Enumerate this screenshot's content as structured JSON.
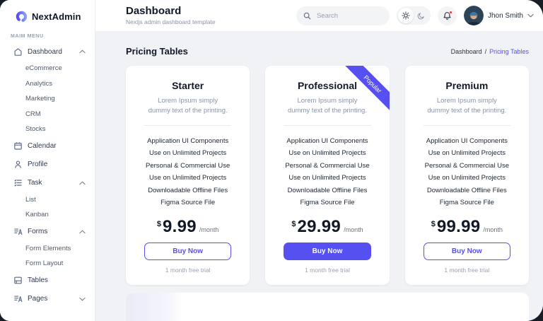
{
  "sidebar": {
    "logo_text": "NextAdmin",
    "section_label": "MAIM MENU",
    "items": [
      {
        "label": "Dashboard",
        "icon": "dashboard-icon",
        "state": "expanded",
        "children": [
          "eCommerce",
          "Analytics",
          "Marketing",
          "CRM",
          "Stocks"
        ]
      },
      {
        "label": "Calendar",
        "icon": "calendar-icon"
      },
      {
        "label": "Profile",
        "icon": "profile-icon"
      },
      {
        "label": "Task",
        "icon": "task-icon",
        "state": "expanded",
        "children": [
          "List",
          "Kanban"
        ]
      },
      {
        "label": "Forms",
        "icon": "forms-icon",
        "state": "expanded",
        "children": [
          "Form Elements",
          "Form Layout"
        ]
      },
      {
        "label": "Tables",
        "icon": "tables-icon"
      },
      {
        "label": "Pages",
        "icon": "pages-icon",
        "state": "collapsed",
        "children": []
      }
    ]
  },
  "header": {
    "title": "Dashboard",
    "subtitle": "Nextjs admin dashboard template",
    "search_placeholder": "Search",
    "user_name": "Jhon Smith"
  },
  "page": {
    "title": "Pricing Tables",
    "breadcrumb": {
      "parent": "Dashboard",
      "separator": "/",
      "current": "Pricing Tables"
    }
  },
  "pricing": {
    "description": "Lorem Ipsum simply dummy text of the printing.",
    "features": [
      "Application UI Components",
      "Use on Unlimited Projects",
      "Personal & Commercial Use",
      "Use on Unlimited Projects",
      "Downloadable Offline Files",
      "Figma Source File"
    ],
    "cards": [
      {
        "name": "Starter",
        "currency": "$",
        "price": "9.99",
        "period": "/month",
        "button_label": "Buy Now",
        "button_variant": "outline",
        "trial": "1 month free trial"
      },
      {
        "name": "Professional",
        "currency": "$",
        "price": "29.99",
        "period": "/month",
        "button_label": "Buy Now",
        "button_variant": "filled",
        "trial": "1 month free trial",
        "ribbon": "Popular"
      },
      {
        "name": "Premium",
        "currency": "$",
        "price": "99.99",
        "period": "/month",
        "button_label": "Buy Now",
        "button_variant": "outline",
        "trial": "1 month free trial"
      }
    ]
  },
  "colors": {
    "primary": "#5750F1",
    "content_background": "#F1F2F6",
    "notification_dot": "#F23030",
    "breadcrumb_active": "#5750F1"
  }
}
